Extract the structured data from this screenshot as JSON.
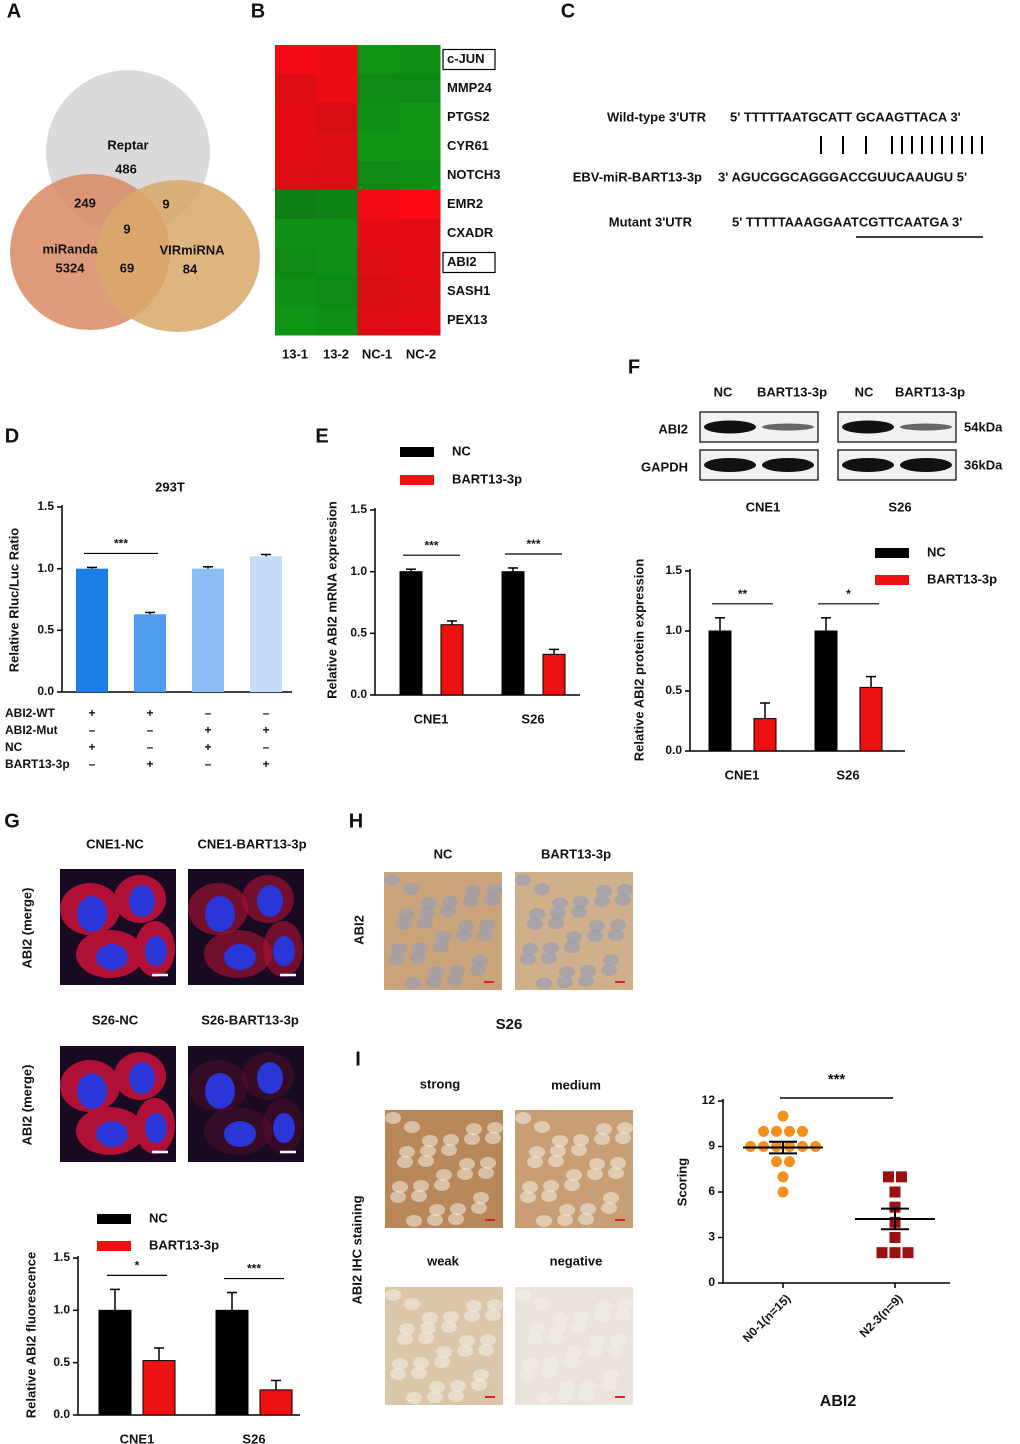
{
  "panel_labels": [
    "A",
    "B",
    "C",
    "D",
    "E",
    "F",
    "G",
    "H",
    "I"
  ],
  "venn": {
    "sets": [
      {
        "name": "Reptar",
        "count": 486
      },
      {
        "name": "miRanda",
        "count": 5324
      },
      {
        "name": "VIRmiRNA",
        "count": 84
      }
    ],
    "overlaps": [
      249,
      9,
      9,
      69
    ]
  },
  "heatmap": {
    "columns": [
      "13-1",
      "13-2",
      "NC-1",
      "NC-2"
    ],
    "rows": [
      {
        "gene": "c-JUN",
        "boxed": true,
        "values": [
          0.9,
          0.85,
          -0.8,
          -0.75
        ]
      },
      {
        "gene": "MMP24",
        "boxed": false,
        "values": [
          0.75,
          0.85,
          -0.7,
          -0.7
        ]
      },
      {
        "gene": "PTGS2",
        "boxed": false,
        "values": [
          0.8,
          0.7,
          -0.75,
          -0.8
        ]
      },
      {
        "gene": "CYR61",
        "boxed": false,
        "values": [
          0.8,
          0.75,
          -0.8,
          -0.8
        ]
      },
      {
        "gene": "NOTCH3",
        "boxed": false,
        "values": [
          0.75,
          0.75,
          -0.7,
          -0.75
        ]
      },
      {
        "gene": "EMR2",
        "boxed": false,
        "values": [
          -0.6,
          -0.65,
          0.9,
          1.0
        ]
      },
      {
        "gene": "CXADR",
        "boxed": false,
        "values": [
          -0.75,
          -0.75,
          0.8,
          0.8
        ]
      },
      {
        "gene": "ABI2",
        "boxed": true,
        "values": [
          -0.7,
          -0.75,
          0.75,
          0.8
        ]
      },
      {
        "gene": "SASH1",
        "boxed": false,
        "values": [
          -0.75,
          -0.7,
          0.7,
          0.75
        ]
      },
      {
        "gene": "PEX13",
        "boxed": false,
        "values": [
          -0.8,
          -0.75,
          0.75,
          0.8
        ]
      }
    ]
  },
  "sequences": [
    {
      "label": "Wild-type 3'UTR",
      "sequence": "5' TTTTTAATGCATT  GCAAGTTACA 3'"
    },
    {
      "label": "EBV-miR-BART13-3p",
      "sequence": "3' AGUCGGCAGGGACCGUUCAAUGU 5'"
    },
    {
      "label": "Mutant 3'UTR",
      "sequence": "5' TTTTTAAAGGAATCGTTCAATGA 3'"
    }
  ],
  "western_blot": {
    "columns": [
      "NC",
      "BART13-3p",
      "NC",
      "BART13-3p"
    ],
    "proteins": [
      {
        "name": "ABI2",
        "size": "54kDa"
      },
      {
        "name": "GAPDH",
        "size": "36kDa"
      }
    ],
    "cell_lines": [
      "CNE1",
      "S26"
    ]
  },
  "immunofluorescence": {
    "panels": [
      "CNE1-NC",
      "CNE1-BART13-3p",
      "S26-NC",
      "S26-BART13-3p"
    ],
    "row_label": "ABI2 (merge)"
  },
  "ihc_h": {
    "columns": [
      "NC",
      "BART13-3p"
    ],
    "row_label": "ABI2",
    "caption": "S26"
  },
  "ihc_i": {
    "panels": [
      "strong",
      "medium",
      "weak",
      "negative"
    ],
    "side_label": "ABI2 IHC staining"
  },
  "chart_data": [
    {
      "type": "bar",
      "title": "293T",
      "y_label": "Relative Rluc/Luc Ratio",
      "values": [
        1.0,
        0.63,
        1.0,
        1.1
      ],
      "errors": [
        0.01,
        0.015,
        0.015,
        0.015
      ],
      "colors": [
        "#1a7fe8",
        "#4d9cf0",
        "#8cbdf5",
        "#c5dcf8"
      ],
      "ylim": [
        0,
        1.5
      ],
      "yticks": [
        {
          "value": 0,
          "label": "0.0"
        },
        0.5,
        {
          "value": 1,
          "label": "1.0"
        },
        1.5
      ],
      "annotations": [
        "***"
      ],
      "conditions": [
        {
          "name": "ABI2-WT",
          "values": [
            "+",
            "+",
            "–",
            "–"
          ]
        },
        {
          "name": "ABI2-Mut",
          "values": [
            "–",
            "–",
            "+",
            "+"
          ]
        },
        {
          "name": "NC",
          "values": [
            "+",
            "–",
            "+",
            "–"
          ]
        },
        {
          "name": "BART13-3p",
          "values": [
            "–",
            "+",
            "–",
            "+"
          ]
        }
      ]
    },
    {
      "type": "bar",
      "y_label": "Relative ABI2 mRNA expression",
      "categories": [
        "CNE1",
        "S26"
      ],
      "series": [
        {
          "name": "NC",
          "color": "#000000",
          "values": [
            1.0,
            1.0
          ],
          "errors": [
            0.02,
            0.03
          ]
        },
        {
          "name": "BART13-3p",
          "color": "#ee1111",
          "values": [
            0.57,
            0.33
          ],
          "errors": [
            0.03,
            0.04
          ]
        }
      ],
      "ylim": [
        0,
        1.5
      ],
      "yticks": [
        {
          "value": 0,
          "label": "0.0"
        },
        0.5,
        {
          "value": 1,
          "label": "1.0"
        },
        1.5
      ],
      "annotations": [
        "***",
        "***"
      ]
    },
    {
      "type": "bar",
      "y_label": "Relative ABI2 protein expression",
      "categories": [
        "CNE1",
        "S26"
      ],
      "series": [
        {
          "name": "NC",
          "color": "#000000",
          "values": [
            1.0,
            1.0
          ],
          "errors": [
            0.11,
            0.11
          ]
        },
        {
          "name": "BART13-3p",
          "color": "#ee1111",
          "values": [
            0.27,
            0.53
          ],
          "errors": [
            0.13,
            0.09
          ]
        }
      ],
      "ylim": [
        0,
        1.5
      ],
      "yticks": [
        {
          "value": 0,
          "label": "0.0"
        },
        0.5,
        {
          "value": 1,
          "label": "1.0"
        },
        1.5
      ],
      "annotations": [
        "**",
        "*"
      ]
    },
    {
      "type": "bar",
      "y_label": "Relative ABI2 fluorescence",
      "categories": [
        "CNE1",
        "S26"
      ],
      "series": [
        {
          "name": "NC",
          "color": "#000000",
          "values": [
            1.0,
            1.0
          ],
          "errors": [
            0.2,
            0.17
          ]
        },
        {
          "name": "BART13-3p",
          "color": "#ee1111",
          "values": [
            0.52,
            0.24
          ],
          "errors": [
            0.12,
            0.09
          ]
        }
      ],
      "ylim": [
        0,
        1.5
      ],
      "yticks": [
        {
          "value": 0,
          "label": "0.0"
        },
        0.5,
        {
          "value": 1,
          "label": "1.0"
        },
        1.5
      ],
      "annotations": [
        "*",
        "***"
      ]
    },
    {
      "type": "scatter",
      "y_label": "Scoring",
      "x_label": "ABI2",
      "categories": [
        "N0-1(n=15)",
        "N2-3(n=9)"
      ],
      "groups": [
        {
          "color": "#f39020",
          "marker": "circle",
          "values": [
            11,
            10,
            10,
            10,
            10,
            9,
            9,
            9,
            9,
            9,
            9,
            8,
            8,
            7,
            6
          ],
          "mean": 8.93,
          "sem": 0.38
        },
        {
          "color": "#9b1010",
          "marker": "square",
          "values": [
            7,
            7,
            6,
            5,
            4,
            3,
            2,
            2,
            2
          ],
          "mean": 4.22,
          "sem": 0.68
        }
      ],
      "ylim": [
        0,
        12
      ],
      "yticks": [
        0,
        3,
        6,
        9,
        12
      ],
      "annotations": [
        "***"
      ]
    }
  ]
}
